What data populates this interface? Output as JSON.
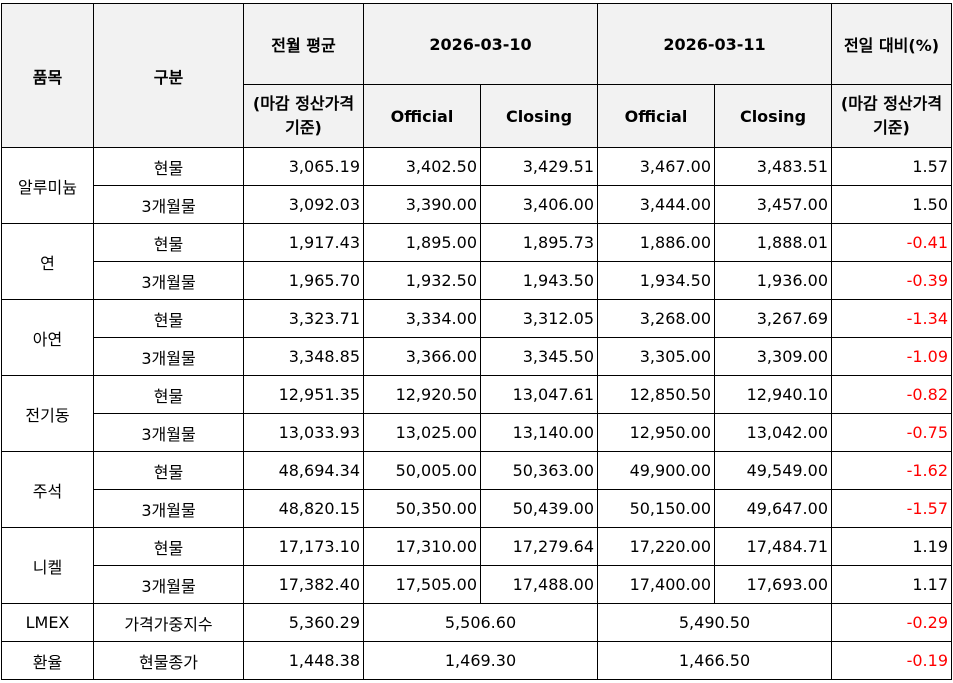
{
  "header": {
    "item": "품목",
    "category": "구분",
    "monthly_avg": "전월 평균",
    "monthly_avg_basis": "(마감 정산가격 기준)",
    "date1": "2026-03-10",
    "date2": "2026-03-11",
    "change": "전일 대비(%)",
    "change_basis": "(마감 정산가격 기준)",
    "official": "Official",
    "closing": "Closing"
  },
  "groups": [
    {
      "name": "알루미늄",
      "rows": [
        {
          "type": "현물",
          "avg": "3,065.19",
          "d1o": "3,402.50",
          "d1c": "3,429.51",
          "d2o": "3,467.00",
          "d2c": "3,483.51",
          "chg": "1.57"
        },
        {
          "type": "3개월물",
          "avg": "3,092.03",
          "d1o": "3,390.00",
          "d1c": "3,406.00",
          "d2o": "3,444.00",
          "d2c": "3,457.00",
          "chg": "1.50"
        }
      ]
    },
    {
      "name": "연",
      "rows": [
        {
          "type": "현물",
          "avg": "1,917.43",
          "d1o": "1,895.00",
          "d1c": "1,895.73",
          "d2o": "1,886.00",
          "d2c": "1,888.01",
          "chg": "-0.41"
        },
        {
          "type": "3개월물",
          "avg": "1,965.70",
          "d1o": "1,932.50",
          "d1c": "1,943.50",
          "d2o": "1,934.50",
          "d2c": "1,936.00",
          "chg": "-0.39"
        }
      ]
    },
    {
      "name": "아연",
      "rows": [
        {
          "type": "현물",
          "avg": "3,323.71",
          "d1o": "3,334.00",
          "d1c": "3,312.05",
          "d2o": "3,268.00",
          "d2c": "3,267.69",
          "chg": "-1.34"
        },
        {
          "type": "3개월물",
          "avg": "3,348.85",
          "d1o": "3,366.00",
          "d1c": "3,345.50",
          "d2o": "3,305.00",
          "d2c": "3,309.00",
          "chg": "-1.09"
        }
      ]
    },
    {
      "name": "전기동",
      "rows": [
        {
          "type": "현물",
          "avg": "12,951.35",
          "d1o": "12,920.50",
          "d1c": "13,047.61",
          "d2o": "12,850.50",
          "d2c": "12,940.10",
          "chg": "-0.82"
        },
        {
          "type": "3개월물",
          "avg": "13,033.93",
          "d1o": "13,025.00",
          "d1c": "13,140.00",
          "d2o": "12,950.00",
          "d2c": "13,042.00",
          "chg": "-0.75"
        }
      ]
    },
    {
      "name": "주석",
      "rows": [
        {
          "type": "현물",
          "avg": "48,694.34",
          "d1o": "50,005.00",
          "d1c": "50,363.00",
          "d2o": "49,900.00",
          "d2c": "49,549.00",
          "chg": "-1.62"
        },
        {
          "type": "3개월물",
          "avg": "48,820.15",
          "d1o": "50,350.00",
          "d1c": "50,439.00",
          "d2o": "50,150.00",
          "d2c": "49,647.00",
          "chg": "-1.57"
        }
      ]
    },
    {
      "name": "니켈",
      "rows": [
        {
          "type": "현물",
          "avg": "17,173.10",
          "d1o": "17,310.00",
          "d1c": "17,279.64",
          "d2o": "17,220.00",
          "d2c": "17,484.71",
          "chg": "1.19"
        },
        {
          "type": "3개월물",
          "avg": "17,382.40",
          "d1o": "17,505.00",
          "d1c": "17,488.00",
          "d2o": "17,400.00",
          "d2c": "17,693.00",
          "chg": "1.17"
        }
      ]
    }
  ],
  "single_rows": [
    {
      "name": "LMEX",
      "type": "가격가중지수",
      "avg": "5,360.29",
      "d1": "5,506.60",
      "d2": "5,490.50",
      "chg": "-0.29"
    },
    {
      "name": "환율",
      "type": "현물종가",
      "avg": "1,448.38",
      "d1": "1,469.30",
      "d2": "1,466.50",
      "chg": "-0.19"
    }
  ]
}
